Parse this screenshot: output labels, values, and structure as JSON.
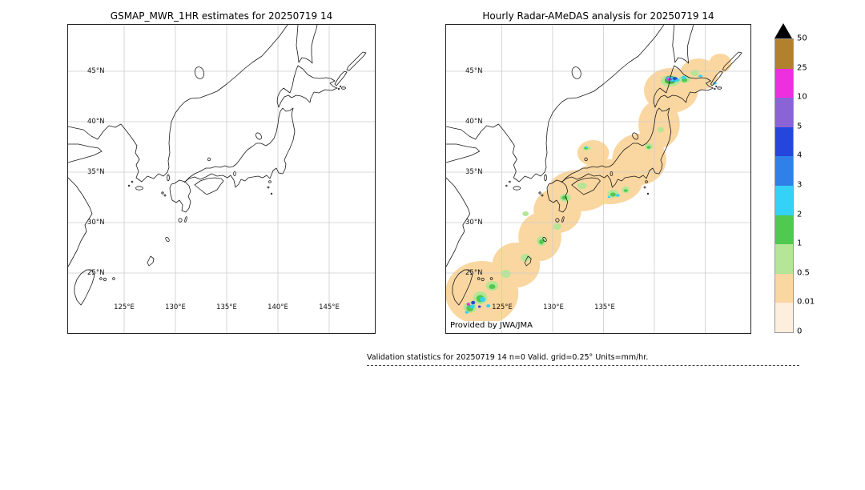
{
  "figure": {
    "left_panel": {
      "title": "GSMAP_MWR_1HR estimates for 20250719 14",
      "lat_ticks": [
        "45°N",
        "40°N",
        "35°N",
        "30°N",
        "25°N"
      ],
      "lon_ticks": [
        "125°E",
        "130°E",
        "135°E",
        "140°E",
        "145°E"
      ]
    },
    "right_panel": {
      "title": "Hourly Radar-AMeDAS analysis for 20250719 14",
      "lat_ticks": [
        "45°N",
        "40°N",
        "35°N",
        "30°N",
        "25°N"
      ],
      "lon_ticks": [
        "125°E",
        "130°E",
        "135°E"
      ],
      "credit": "Provided by JWA/JMA"
    },
    "colorbar": {
      "tick_labels": [
        "50",
        "25",
        "10",
        "5",
        "4",
        "3",
        "2",
        "1",
        "0.5",
        "0.01",
        "0"
      ],
      "segment_colors_top_to_bottom": [
        "#b2812e",
        "#ee2fe0",
        "#8a63d6",
        "#2546dd",
        "#2f80e8",
        "#35d2f8",
        "#4fc94f",
        "#b5e596",
        "#fad7a0",
        "#fdeedd"
      ],
      "overflow_marker": "black-up-triangle"
    },
    "footer": {
      "validation_text": "Validation statistics for 20250719 14  n=0 Valid. grid=0.25° Units=mm/hr."
    }
  }
}
